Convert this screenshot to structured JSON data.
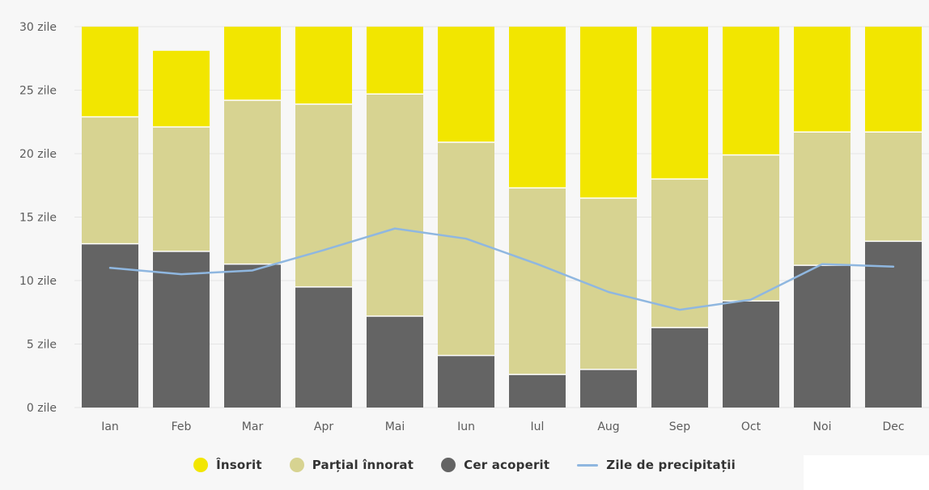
{
  "chart_data": {
    "type": "bar",
    "stacked": true,
    "categories": [
      "Ian",
      "Feb",
      "Mar",
      "Apr",
      "Mai",
      "Iun",
      "Iul",
      "Aug",
      "Sep",
      "Oct",
      "Noi",
      "Dec"
    ],
    "series": [
      {
        "name": "Cer acoperit",
        "color": "#646464",
        "values": [
          12.9,
          12.3,
          11.3,
          9.5,
          7.2,
          4.1,
          2.6,
          3.0,
          6.3,
          8.4,
          11.2,
          13.1
        ]
      },
      {
        "name": "Parțial înnorat",
        "color": "#d7d391",
        "values": [
          10.0,
          9.8,
          12.9,
          14.4,
          17.5,
          16.8,
          14.7,
          13.5,
          11.7,
          11.5,
          10.5,
          8.6
        ]
      },
      {
        "name": "Însorit",
        "color": "#f2e600",
        "values": [
          7.1,
          6.0,
          5.8,
          6.1,
          5.3,
          9.1,
          12.7,
          13.5,
          12.0,
          10.1,
          8.3,
          8.3
        ]
      }
    ],
    "line_series": {
      "name": "Zile de precipitații",
      "color": "#8fb7e0",
      "values": [
        11.0,
        10.5,
        10.8,
        12.4,
        14.1,
        13.3,
        11.3,
        9.1,
        7.7,
        8.5,
        11.3,
        11.1
      ]
    },
    "ylim": [
      0,
      30
    ],
    "yticks": [
      0,
      5,
      10,
      15,
      20,
      25,
      30
    ],
    "ytick_labels": [
      "0 zile",
      "5 zile",
      "10 zile",
      "15 zile",
      "20 zile",
      "25 zile",
      "30 zile"
    ],
    "grid": true,
    "legend_position": "bottom"
  },
  "legend": {
    "items": [
      {
        "label": "Însorit",
        "color": "#f2e600",
        "kind": "dot"
      },
      {
        "label": "Parțial înnorat",
        "color": "#d7d391",
        "kind": "dot"
      },
      {
        "label": "Cer acoperit",
        "color": "#646464",
        "kind": "dot"
      },
      {
        "label": "Zile de precipitații",
        "color": "#8fb7e0",
        "kind": "line"
      }
    ]
  }
}
